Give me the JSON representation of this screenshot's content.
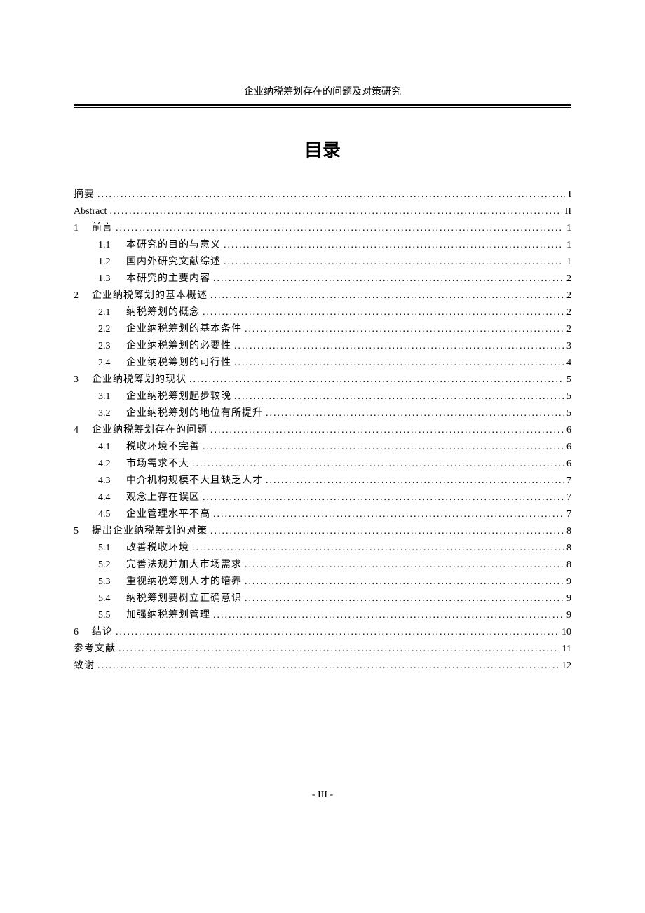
{
  "document": {
    "header_title": "企业纳税筹划存在的问题及对策研究",
    "toc_heading": "目录",
    "page_footer": "- III -"
  },
  "toc": [
    {
      "level": 1,
      "num": "",
      "label": "摘要",
      "page": "I",
      "latin": false
    },
    {
      "level": 1,
      "num": "",
      "label": "Abstract",
      "page": "II",
      "latin": true
    },
    {
      "level": 1,
      "num": "1",
      "label": "前言",
      "page": "1",
      "latin": false
    },
    {
      "level": 2,
      "num": "1.1",
      "label": "本研究的目的与意义",
      "page": "1",
      "latin": false
    },
    {
      "level": 2,
      "num": "1.2",
      "label": "国内外研究文献综述",
      "page": "1",
      "latin": false
    },
    {
      "level": 2,
      "num": "1.3",
      "label": "本研究的主要内容",
      "page": "2",
      "latin": false
    },
    {
      "level": 1,
      "num": "2",
      "label": "企业纳税筹划的基本概述",
      "page": "2",
      "latin": false
    },
    {
      "level": 2,
      "num": "2.1",
      "label": "纳税筹划的概念",
      "page": "2",
      "latin": false
    },
    {
      "level": 2,
      "num": "2.2",
      "label": "企业纳税筹划的基本条件",
      "page": "2",
      "latin": false
    },
    {
      "level": 2,
      "num": "2.3",
      "label": "企业纳税筹划的必要性",
      "page": "3",
      "latin": false
    },
    {
      "level": 2,
      "num": "2.4",
      "label": "企业纳税筹划的可行性",
      "page": "4",
      "latin": false
    },
    {
      "level": 1,
      "num": "3",
      "label": "企业纳税筹划的现状",
      "page": "5",
      "latin": false
    },
    {
      "level": 2,
      "num": "3.1",
      "label": "企业纳税筹划起步较晚",
      "page": "5",
      "latin": false
    },
    {
      "level": 2,
      "num": "3.2",
      "label": "企业纳税筹划的地位有所提升",
      "page": "5",
      "latin": false
    },
    {
      "level": 1,
      "num": "4",
      "label": "企业纳税筹划存在的问题",
      "page": "6",
      "latin": false
    },
    {
      "level": 2,
      "num": "4.1",
      "label": "税收环境不完善",
      "page": "6",
      "latin": false
    },
    {
      "level": 2,
      "num": "4.2",
      "label": "市场需求不大",
      "page": "6",
      "latin": false
    },
    {
      "level": 2,
      "num": "4.3",
      "label": "中介机构规模不大且缺乏人才",
      "page": "7",
      "latin": false
    },
    {
      "level": 2,
      "num": "4.4",
      "label": "观念上存在误区",
      "page": "7",
      "latin": false
    },
    {
      "level": 2,
      "num": "4.5",
      "label": "企业管理水平不高",
      "page": "7",
      "latin": false
    },
    {
      "level": 1,
      "num": "5",
      "label": "提出企业纳税筹划的对策",
      "page": "8",
      "latin": false
    },
    {
      "level": 2,
      "num": "5.1",
      "label": "改善税收环境",
      "page": "8",
      "latin": false
    },
    {
      "level": 2,
      "num": "5.2",
      "label": "完善法规并加大市场需求",
      "page": "8",
      "latin": false
    },
    {
      "level": 2,
      "num": "5.3",
      "label": "重视纳税筹划人才的培养",
      "page": "9",
      "latin": false
    },
    {
      "level": 2,
      "num": "5.4",
      "label": "纳税筹划要树立正确意识",
      "page": "9",
      "latin": false
    },
    {
      "level": 2,
      "num": "5.5",
      "label": "加强纳税筹划管理",
      "page": "9",
      "latin": false
    },
    {
      "level": 1,
      "num": "6",
      "label": "结论",
      "page": "10",
      "latin": false
    },
    {
      "level": 1,
      "num": "",
      "label": "参考文献",
      "page": "11",
      "latin": false
    },
    {
      "level": 1,
      "num": "",
      "label": "致谢",
      "page": "12",
      "latin": false
    }
  ]
}
